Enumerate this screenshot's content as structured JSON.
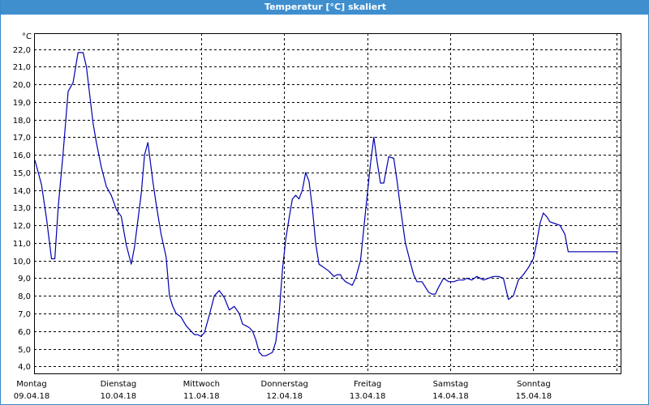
{
  "window": {
    "title": "Temperatur [°C] skaliert"
  },
  "colors": {
    "titlebar": "#3f8fcf",
    "series": "#0000b0",
    "grid": "#000000"
  },
  "chart_data": {
    "type": "line",
    "title": "Temperatur [°C] skaliert",
    "ylabel": "°C",
    "ylim": [
      3.6,
      22.9
    ],
    "grid": true,
    "y_ticks": [
      "4.0",
      "5.0",
      "6.0",
      "7.0",
      "8.0",
      "9.0",
      "10.0",
      "11.0",
      "12.0",
      "13.0",
      "14.0",
      "15.0",
      "16.0",
      "17.0",
      "18.0",
      "19.0",
      "20.0",
      "21.0",
      "22.0"
    ],
    "x_ticks": [
      {
        "day": "Montag",
        "date": "09.04.18"
      },
      {
        "day": "Dienstag",
        "date": "10.04.18"
      },
      {
        "day": "Mittwoch",
        "date": "11.04.18"
      },
      {
        "day": "Donnerstag",
        "date": "12.04.18"
      },
      {
        "day": "Freitag",
        "date": "13.04.18"
      },
      {
        "day": "Samstag",
        "date": "14.04.18"
      },
      {
        "day": "Sonntag",
        "date": "15.04.18"
      }
    ],
    "series": [
      {
        "x": [
          0.0,
          0.04,
          0.08,
          0.14,
          0.2,
          0.24,
          0.28,
          0.34,
          0.4,
          0.46,
          0.52,
          0.58,
          0.62,
          0.66,
          0.7,
          0.74,
          0.8,
          0.86,
          0.92,
          0.98,
          1.04,
          1.1,
          1.16,
          1.2,
          1.24,
          1.28,
          1.32,
          1.36,
          1.42,
          1.46,
          1.52,
          1.58,
          1.62,
          1.66,
          1.7,
          1.76,
          1.82,
          1.88,
          1.92,
          1.96,
          2.0,
          2.04,
          2.1,
          2.16,
          2.22,
          2.28,
          2.34,
          2.4,
          2.46,
          2.5,
          2.54,
          2.58,
          2.62,
          2.66,
          2.7,
          2.74,
          2.78,
          2.82,
          2.86,
          2.9,
          2.94,
          2.98,
          3.02,
          3.06,
          3.1,
          3.14,
          3.18,
          3.22,
          3.26,
          3.3,
          3.34,
          3.38,
          3.42,
          3.48,
          3.54,
          3.6,
          3.64,
          3.68,
          3.7,
          3.74,
          3.78,
          3.82,
          3.86,
          3.92,
          3.98,
          4.04,
          4.08,
          4.12,
          4.16,
          4.2,
          4.26,
          4.32,
          4.36,
          4.4,
          4.46,
          4.52,
          4.56,
          4.6,
          4.64,
          4.66,
          4.7,
          4.74,
          4.78,
          4.82,
          4.86,
          4.92,
          4.98,
          5.04,
          5.1,
          5.16,
          5.2,
          5.26,
          5.32,
          5.4,
          5.46,
          5.52,
          5.58,
          5.64,
          5.7,
          5.76,
          5.82,
          5.88,
          5.94,
          6.0,
          6.04,
          6.08,
          6.12,
          6.16,
          6.2,
          6.26,
          6.32,
          6.38,
          6.42,
          6.46,
          6.5,
          6.54,
          6.58,
          6.62,
          6.66,
          6.7,
          6.74,
          6.78,
          6.82,
          6.86,
          6.9,
          6.94,
          6.98,
          7.02
        ],
        "values": [
          15.7,
          15.0,
          14.3,
          12.4,
          10.1,
          10.1,
          13.0,
          16.1,
          19.6,
          20.1,
          21.8,
          21.8,
          21.0,
          19.4,
          17.8,
          16.7,
          15.3,
          14.2,
          13.7,
          12.9,
          12.5,
          10.9,
          9.8,
          10.8,
          12.3,
          13.8,
          16.0,
          16.7,
          14.5,
          13.2,
          11.5,
          10.2,
          8.0,
          7.4,
          7.0,
          6.8,
          6.3,
          6.0,
          5.8,
          5.8,
          5.7,
          5.9,
          6.9,
          8.0,
          8.3,
          7.9,
          7.2,
          7.4,
          7.0,
          6.4,
          6.3,
          6.2,
          6.0,
          5.5,
          4.8,
          4.6,
          4.6,
          4.7,
          4.8,
          5.4,
          7.0,
          9.5,
          11.2,
          12.4,
          13.5,
          13.7,
          13.5,
          14.0,
          15.0,
          14.5,
          13.0,
          11.0,
          9.8,
          9.6,
          9.4,
          9.1,
          9.2,
          9.2,
          9.0,
          8.8,
          8.7,
          8.6,
          9.0,
          10.0,
          12.8,
          15.5,
          17.0,
          15.6,
          14.4,
          14.4,
          15.9,
          15.8,
          14.5,
          13.0,
          11.0,
          9.9,
          9.2,
          8.8,
          8.8,
          8.8,
          8.5,
          8.2,
          8.1,
          8.1,
          8.5,
          9.0,
          8.8,
          8.8,
          8.9,
          8.9,
          9.0,
          8.9,
          9.1,
          8.9,
          9.0,
          9.1,
          9.1,
          9.0,
          7.8,
          8.0,
          8.9,
          9.2,
          9.6,
          10.1,
          11.0,
          12.1,
          12.7,
          12.5,
          12.2,
          12.1,
          12.0,
          11.5,
          10.5,
          10.5,
          10.5,
          10.5,
          10.5,
          10.5,
          10.5,
          10.5,
          10.5,
          10.5,
          10.5,
          10.5,
          10.5,
          10.5,
          10.5,
          10.5
        ]
      }
    ]
  }
}
